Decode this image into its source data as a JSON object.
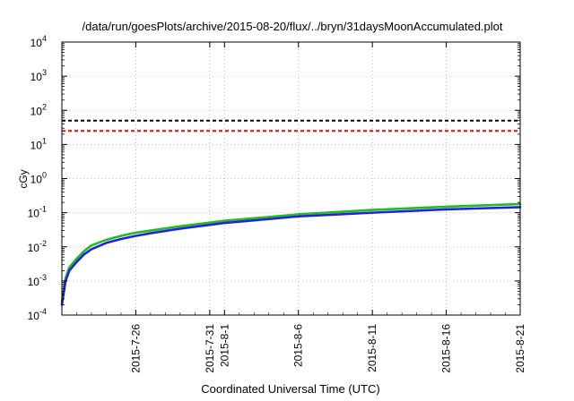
{
  "chart_data": {
    "type": "line",
    "title": "/data/run/goesPlots/archive/2015-08-20/flux/../bryn/31daysMoonAccumulated.plot",
    "xlabel": "Coordinated Universal Time (UTC)",
    "ylabel": "cGy",
    "y_scale": "log",
    "ylim": [
      0.0001,
      10000
    ],
    "xlim": [
      "2015-07-21",
      "2015-08-21"
    ],
    "grid": true,
    "y_ticks": [
      {
        "value": 0.0001,
        "base": "10",
        "exp": "-4"
      },
      {
        "value": 0.001,
        "base": "10",
        "exp": "-3"
      },
      {
        "value": 0.01,
        "base": "10",
        "exp": "-2"
      },
      {
        "value": 0.1,
        "base": "10",
        "exp": "-1"
      },
      {
        "value": 1,
        "base": "10",
        "exp": "0"
      },
      {
        "value": 10,
        "base": "10",
        "exp": "1"
      },
      {
        "value": 100,
        "base": "10",
        "exp": "2"
      },
      {
        "value": 1000,
        "base": "10",
        "exp": "3"
      },
      {
        "value": 10000,
        "base": "10",
        "exp": "4"
      }
    ],
    "x_ticks": [
      {
        "date": "2015-07-26",
        "label": "2015-7-26"
      },
      {
        "date": "2015-07-31",
        "label": "2015-7-31"
      },
      {
        "date": "2015-08-01",
        "label": "2015-8-1"
      },
      {
        "date": "2015-08-06",
        "label": "2015-8-6"
      },
      {
        "date": "2015-08-11",
        "label": "2015-8-11"
      },
      {
        "date": "2015-08-16",
        "label": "2015-8-16"
      },
      {
        "date": "2015-08-21",
        "label": "2015-8-21"
      }
    ],
    "thresholds": [
      {
        "value": 50,
        "color": "#000000"
      },
      {
        "value": 25,
        "color": "#ff0000"
      }
    ],
    "series": [
      {
        "color": "#22bb22",
        "x": [
          "2015-07-21T00:00",
          "2015-07-21T06:00",
          "2015-07-21T12:00",
          "2015-07-22T00:00",
          "2015-07-22T12:00",
          "2015-07-23T00:00",
          "2015-07-24T00:00",
          "2015-07-25T00:00",
          "2015-07-26T00:00",
          "2015-07-27T00:00",
          "2015-07-29T00:00",
          "2015-08-01T00:00",
          "2015-08-04T00:00",
          "2015-08-06T00:00",
          "2015-08-11T00:00",
          "2015-08-16T00:00",
          "2015-08-21T00:00"
        ],
        "values": [
          0.00025,
          0.0012,
          0.0025,
          0.0045,
          0.0075,
          0.011,
          0.016,
          0.021,
          0.026,
          0.03,
          0.04,
          0.058,
          0.075,
          0.09,
          0.12,
          0.15,
          0.18
        ]
      },
      {
        "color": "#2222dd",
        "x": [
          "2015-07-21T00:00",
          "2015-07-21T06:00",
          "2015-07-21T12:00",
          "2015-07-22T00:00",
          "2015-07-22T12:00",
          "2015-07-23T00:00",
          "2015-07-24T00:00",
          "2015-07-25T00:00",
          "2015-07-26T00:00",
          "2015-07-27T00:00",
          "2015-07-29T00:00",
          "2015-08-01T00:00",
          "2015-08-04T00:00",
          "2015-08-06T00:00",
          "2015-08-11T00:00",
          "2015-08-16T00:00",
          "2015-08-21T00:00"
        ],
        "values": [
          0.0002,
          0.001,
          0.002,
          0.0036,
          0.006,
          0.0085,
          0.013,
          0.017,
          0.021,
          0.025,
          0.034,
          0.05,
          0.065,
          0.078,
          0.1,
          0.125,
          0.145
        ]
      }
    ]
  }
}
